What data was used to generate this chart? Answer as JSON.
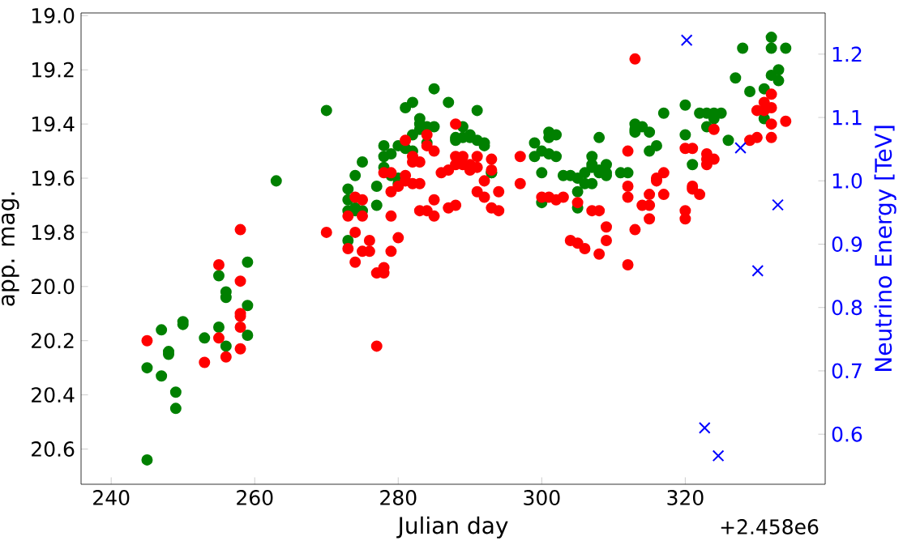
{
  "chart_data": {
    "type": "scatter",
    "xlabel": "Julian day",
    "ylabel": "app. mag.",
    "y2label": "Neutrino Energy [TeV]",
    "marker": "circle",
    "annotations": [
      "+2.458e6"
    ],
    "xlim": [
      235.8,
      339.5
    ],
    "ylim": [
      20.73,
      18.99
    ],
    "y2lim": [
      0.521,
      1.265
    ],
    "xticks": [
      240,
      260,
      280,
      300,
      320
    ],
    "yticks": [
      {
        "value": 19,
        "label": "19.0"
      },
      19.2,
      19.4,
      19.6,
      19.8,
      {
        "value": 20,
        "label": "20.0"
      },
      20.2,
      20.4,
      20.6
    ],
    "y2ticks": [
      0.6,
      0.7,
      0.8,
      0.9,
      {
        "value": 1,
        "label": "1.0"
      },
      1.1,
      1.2
    ],
    "series": [
      {
        "color": "#008000",
        "x": [
          245,
          245,
          247,
          247,
          248,
          248,
          249,
          249,
          250,
          250,
          253,
          255,
          255,
          256,
          256,
          256,
          259,
          259,
          259,
          263,
          270,
          273,
          273,
          273,
          273,
          274,
          274,
          274,
          275,
          275,
          277,
          277,
          278,
          278,
          278,
          279,
          279,
          280,
          280,
          280,
          281,
          281,
          282,
          282,
          282,
          283,
          283,
          283,
          284,
          284,
          285,
          285,
          287,
          288,
          288,
          289,
          289,
          290,
          290,
          291,
          291,
          292,
          292,
          293,
          293,
          299,
          299,
          300,
          300,
          300,
          301,
          301,
          301,
          302,
          302,
          303,
          304,
          305,
          305,
          305,
          306,
          306,
          307,
          307,
          307,
          307,
          308,
          308,
          308,
          309,
          309,
          309,
          311,
          312,
          313,
          313,
          313,
          314,
          315,
          315,
          316,
          317,
          320,
          320,
          321,
          322,
          323,
          323,
          324,
          324,
          325,
          326,
          327,
          328,
          329,
          331,
          331,
          332,
          332,
          332,
          333,
          333,
          334
        ],
        "values": [
          20.3,
          20.64,
          20.16,
          20.33,
          20.24,
          20.25,
          20.39,
          20.45,
          20.13,
          20.14,
          20.19,
          20.15,
          19.96,
          20.04,
          20.02,
          20.22,
          19.91,
          20.07,
          20.18,
          19.61,
          19.35,
          19.64,
          19.68,
          19.72,
          19.83,
          19.59,
          19.71,
          19.72,
          19.72,
          19.54,
          19.7,
          19.63,
          19.48,
          19.52,
          19.56,
          19.51,
          19.59,
          19.48,
          19.6,
          19.62,
          19.34,
          19.49,
          19.32,
          19.44,
          19.5,
          19.38,
          19.4,
          19.42,
          19.41,
          19.47,
          19.27,
          19.41,
          19.32,
          19.45,
          19.46,
          19.41,
          19.45,
          19.44,
          19.45,
          19.35,
          19.46,
          19.47,
          19.48,
          19.58,
          19.58,
          19.52,
          19.47,
          19.5,
          19.58,
          19.69,
          19.43,
          19.45,
          19.51,
          19.52,
          19.44,
          19.59,
          19.59,
          19.65,
          19.71,
          19.6,
          19.58,
          19.62,
          19.62,
          19.52,
          19.55,
          19.56,
          19.45,
          19.57,
          19.58,
          19.55,
          19.58,
          19.59,
          19.58,
          19.58,
          19.42,
          19.43,
          19.4,
          19.41,
          19.43,
          19.5,
          19.48,
          19.36,
          19.33,
          19.44,
          19.55,
          19.36,
          19.36,
          19.41,
          19.38,
          19.36,
          19.36,
          19.46,
          19.23,
          19.12,
          19.28,
          19.38,
          19.27,
          19.08,
          19.12,
          19.22,
          19.2,
          19.24,
          19.12
        ]
      },
      {
        "color": "#ff0000",
        "x": [
          245,
          253,
          255,
          255,
          256,
          258,
          258,
          258,
          258,
          258,
          258,
          270,
          273,
          273,
          274,
          274,
          274,
          275,
          275,
          275,
          276,
          276,
          277,
          277,
          278,
          278,
          278,
          279,
          279,
          279,
          279,
          280,
          280,
          281,
          281,
          281,
          282,
          282,
          282,
          283,
          283,
          283,
          284,
          284,
          284,
          285,
          285,
          285,
          286,
          287,
          287,
          288,
          288,
          288,
          288,
          289,
          289,
          290,
          290,
          291,
          291,
          291,
          292,
          292,
          293,
          293,
          293,
          294,
          294,
          297,
          297,
          300,
          301,
          302,
          303,
          304,
          305,
          305,
          306,
          307,
          308,
          308,
          309,
          309,
          312,
          312,
          312,
          312,
          313,
          313,
          314,
          315,
          315,
          315,
          316,
          316,
          317,
          317,
          320,
          320,
          320,
          321,
          321,
          321,
          322,
          323,
          323,
          323,
          324,
          324,
          329,
          330,
          330,
          331,
          331,
          332,
          332,
          332,
          332,
          334
        ],
        "values": [
          20.2,
          20.28,
          19.92,
          20.19,
          20.26,
          19.79,
          19.98,
          20.1,
          20.11,
          20.15,
          20.23,
          19.8,
          19.74,
          19.86,
          19.67,
          19.8,
          19.91,
          19.68,
          19.74,
          19.87,
          19.83,
          19.87,
          19.95,
          20.22,
          19.93,
          19.95,
          19.58,
          19.58,
          19.65,
          19.74,
          19.87,
          19.63,
          19.82,
          19.46,
          19.59,
          19.61,
          19.52,
          19.54,
          19.62,
          19.54,
          19.62,
          19.72,
          19.44,
          19.48,
          19.72,
          19.5,
          19.68,
          19.74,
          19.58,
          19.57,
          19.71,
          19.4,
          19.52,
          19.55,
          19.7,
          19.52,
          19.55,
          19.55,
          19.57,
          19.52,
          19.56,
          19.65,
          19.61,
          19.67,
          19.53,
          19.57,
          19.71,
          19.65,
          19.72,
          19.52,
          19.62,
          19.67,
          19.67,
          19.68,
          19.67,
          19.83,
          19.84,
          19.69,
          19.86,
          19.72,
          19.72,
          19.88,
          19.78,
          19.83,
          19.5,
          19.63,
          19.67,
          19.92,
          19.16,
          19.79,
          19.7,
          19.66,
          19.7,
          19.75,
          19.61,
          19.6,
          19.58,
          19.66,
          19.72,
          19.75,
          19.49,
          19.49,
          19.63,
          19.64,
          19.66,
          19.51,
          19.53,
          19.55,
          19.53,
          19.42,
          19.46,
          19.45,
          19.35,
          19.32,
          19.35,
          19.29,
          19.4,
          19.45,
          19.34,
          19.39
        ]
      },
      {
        "color": "#0000ff",
        "axis": "y2",
        "marker": "cross",
        "x": [
          320.2,
          327.7,
          332.9,
          330.1,
          322.7,
          324.6
        ],
        "values": [
          1.222,
          1.052,
          0.962,
          0.858,
          0.61,
          0.566
        ]
      }
    ]
  }
}
